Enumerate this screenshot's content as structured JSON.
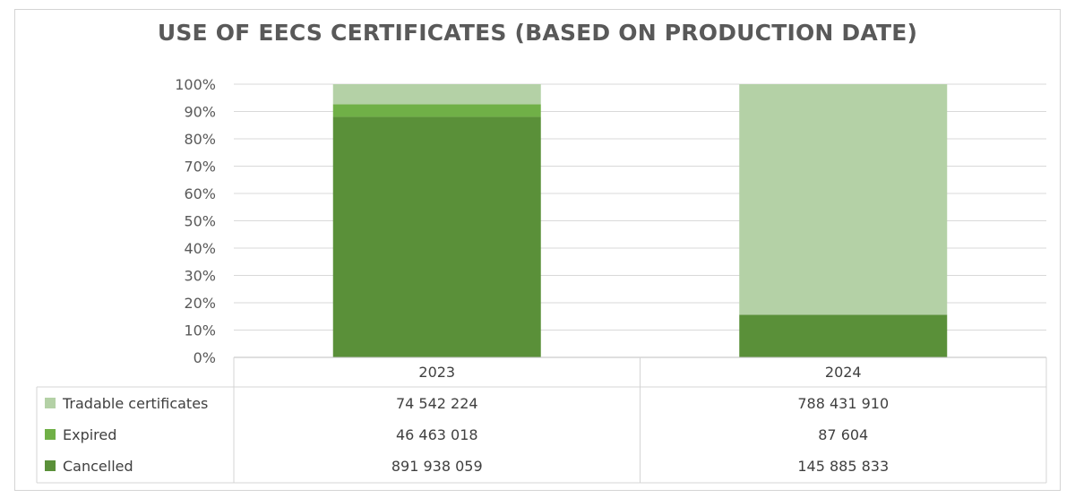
{
  "chart_data": {
    "type": "bar",
    "stacked": "percent",
    "title": "USE OF EECS CERTIFICATES (BASED ON PRODUCTION DATE)",
    "categories": [
      "2023",
      "2024"
    ],
    "y_tick_labels": [
      "0%",
      "10%",
      "20%",
      "30%",
      "40%",
      "50%",
      "60%",
      "70%",
      "80%",
      "90%",
      "100%"
    ],
    "ylim": [
      0,
      100
    ],
    "grid": true,
    "legend": "data-table",
    "series": [
      {
        "name": "Tradable certificates",
        "color": "#b4d1a6",
        "values": [
          74542224,
          788431910
        ],
        "labels": [
          "74 542 224",
          "788 431 910"
        ]
      },
      {
        "name": "Expired",
        "color": "#70b047",
        "values": [
          46463018,
          87604
        ],
        "labels": [
          "46 463 018",
          "87 604"
        ]
      },
      {
        "name": "Cancelled",
        "color": "#5a9039",
        "values": [
          891938059,
          145885833
        ],
        "labels": [
          "891 938 059",
          "145 885 833"
        ]
      }
    ]
  }
}
